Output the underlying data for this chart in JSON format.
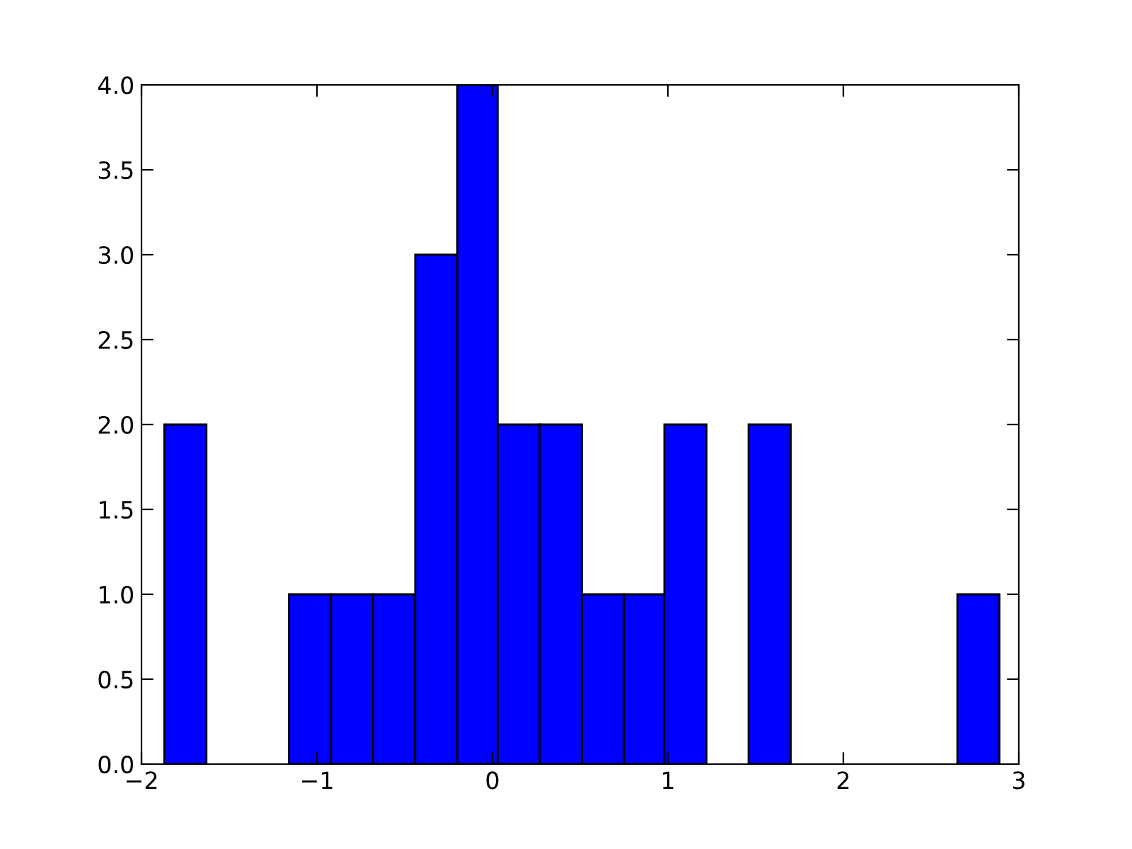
{
  "chart_data": {
    "type": "histogram",
    "bins": [
      -1.87,
      -1.63,
      -1.16,
      -0.92,
      -0.68,
      -0.44,
      -0.2,
      0.03,
      0.27,
      0.51,
      0.75,
      0.98,
      1.22,
      1.46,
      1.7,
      2.65,
      2.89
    ],
    "values": [
      2,
      0,
      1,
      1,
      1,
      3,
      4,
      2,
      2,
      1,
      1,
      2,
      0,
      2,
      0,
      1
    ],
    "color": "#0000ff",
    "xlim": [
      -2,
      3
    ],
    "xticks": [
      {
        "value": -2,
        "label": "−2"
      },
      {
        "value": -1,
        "label": "−1"
      },
      0,
      1,
      2,
      3
    ],
    "ylim": [
      0,
      4
    ],
    "yticks": [
      {
        "value": 0,
        "label": "0.0"
      },
      {
        "value": 0.5,
        "label": "0.5"
      },
      {
        "value": 1,
        "label": "1.0"
      },
      {
        "value": 1.5,
        "label": "1.5"
      },
      {
        "value": 2,
        "label": "2.0"
      },
      {
        "value": 2.5,
        "label": "2.5"
      },
      {
        "value": 3,
        "label": "3.0"
      },
      {
        "value": 3.5,
        "label": "3.5"
      },
      {
        "value": 4,
        "label": "4.0"
      }
    ],
    "grid": false
  }
}
